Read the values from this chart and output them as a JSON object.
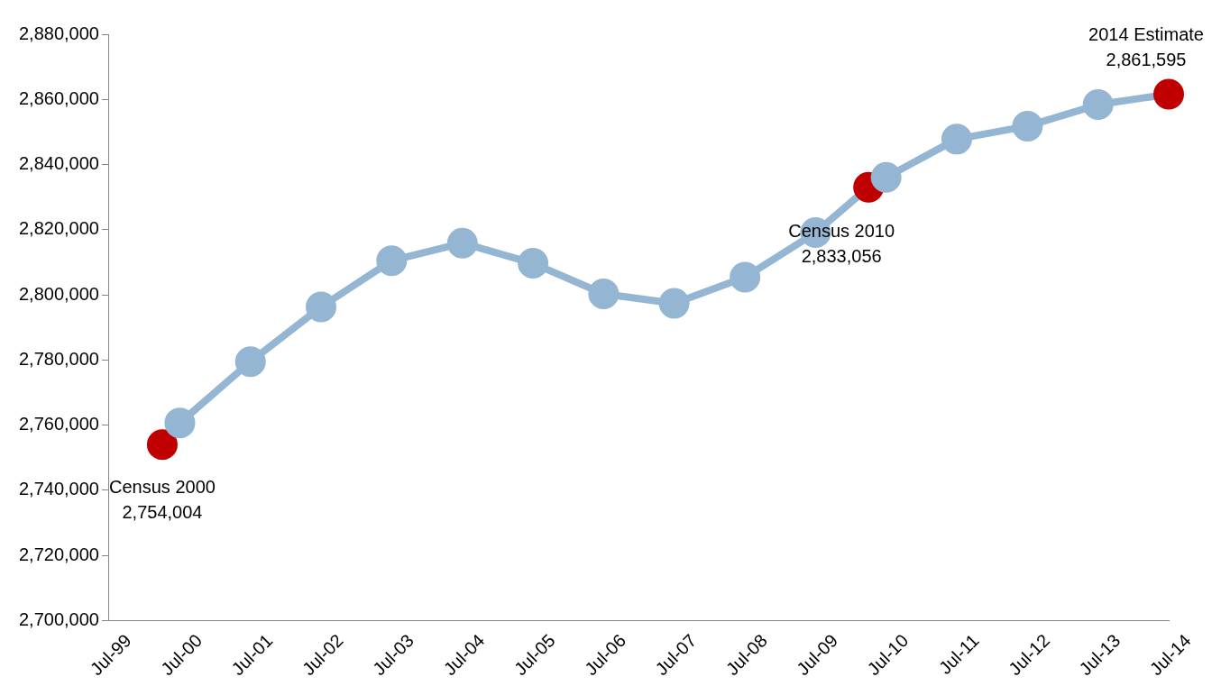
{
  "chart_data": {
    "type": "line",
    "x": [
      "2000-04-01",
      "2000-07",
      "2001-07",
      "2002-07",
      "2003-07",
      "2004-07",
      "2005-07",
      "2006-07",
      "2007-07",
      "2008-07",
      "2009-07",
      "2010-04-01",
      "2010-07",
      "2011-07",
      "2012-07",
      "2013-07",
      "2014-07"
    ],
    "series": [
      {
        "color": "#94b6d2",
        "colors": [
          "#c00000",
          "#94b6d2",
          "#94b6d2",
          "#94b6d2",
          "#94b6d2",
          "#94b6d2",
          "#94b6d2",
          "#94b6d2",
          "#94b6d2",
          "#94b6d2",
          "#94b6d2",
          "#c00000",
          "#94b6d2",
          "#94b6d2",
          "#94b6d2",
          "#94b6d2",
          "#c00000"
        ],
        "values": [
          2754004,
          2760700,
          2779500,
          2796300,
          2810500,
          2815900,
          2809700,
          2800300,
          2797400,
          2805400,
          2819100,
          2833056,
          2836100,
          2847800,
          2851800,
          2858400,
          2861595
        ]
      }
    ],
    "xlim": [
      "1999-07",
      "2014-07"
    ],
    "xticks": [
      {
        "value": "1999-07",
        "label": "Jul-99"
      },
      {
        "value": "2000-07",
        "label": "Jul-00"
      },
      {
        "value": "2001-07",
        "label": "Jul-01"
      },
      {
        "value": "2002-07",
        "label": "Jul-02"
      },
      {
        "value": "2003-07",
        "label": "Jul-03"
      },
      {
        "value": "2004-07",
        "label": "Jul-04"
      },
      {
        "value": "2005-07",
        "label": "Jul-05"
      },
      {
        "value": "2006-07",
        "label": "Jul-06"
      },
      {
        "value": "2007-07",
        "label": "Jul-07"
      },
      {
        "value": "2008-07",
        "label": "Jul-08"
      },
      {
        "value": "2009-07",
        "label": "Jul-09"
      },
      {
        "value": "2010-07",
        "label": "Jul-10"
      },
      {
        "value": "2011-07",
        "label": "Jul-11"
      },
      {
        "value": "2012-07",
        "label": "Jul-12"
      },
      {
        "value": "2013-07",
        "label": "Jul-13"
      },
      {
        "value": "2014-07",
        "label": "Jul-14"
      }
    ],
    "ylim": [
      2700000,
      2880000
    ],
    "yticks": [
      {
        "value": 2700000,
        "label": "2,700,000"
      },
      {
        "value": 2720000,
        "label": "2,720,000"
      },
      {
        "value": 2740000,
        "label": "2,740,000"
      },
      {
        "value": 2760000,
        "label": "2,760,000"
      },
      {
        "value": 2780000,
        "label": "2,780,000"
      },
      {
        "value": 2800000,
        "label": "2,800,000"
      },
      {
        "value": 2820000,
        "label": "2,820,000"
      },
      {
        "value": 2840000,
        "label": "2,840,000"
      },
      {
        "value": 2860000,
        "label": "2,860,000"
      },
      {
        "value": 2880000,
        "label": "2,880,000"
      }
    ],
    "annotations": [
      {
        "text": "Census 2000\n2,754,004",
        "x": "2000-04-01",
        "y": 2754004
      },
      {
        "text": "Census 2010\n2,833,056",
        "x": "2010-04-01",
        "y": 2833056
      },
      {
        "text": "2014 Estimate\n2,861,595",
        "x": "2014-07",
        "y": 2861595
      }
    ],
    "grid": false,
    "legend": false,
    "marker": "circle",
    "line_style": "solid"
  }
}
